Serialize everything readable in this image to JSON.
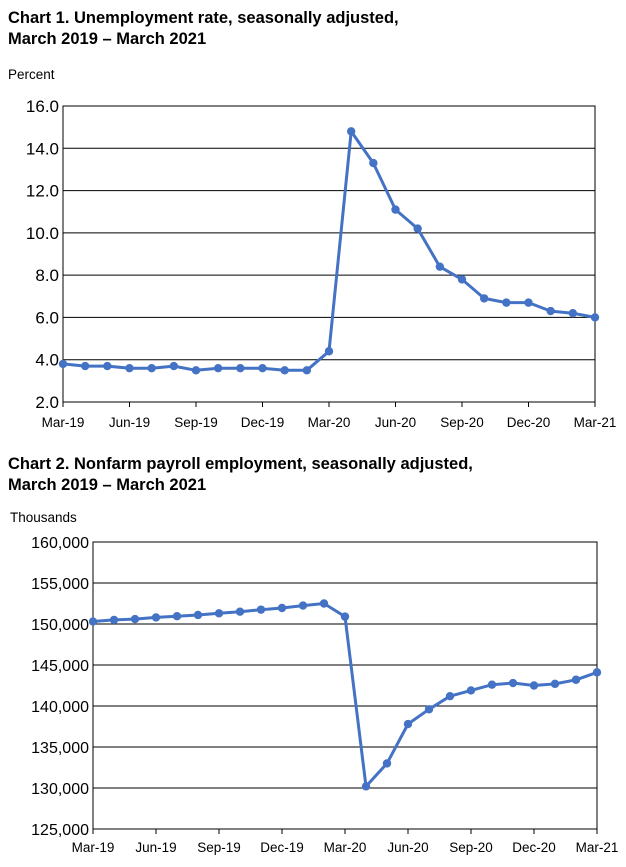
{
  "colors": {
    "line": "#4472c4",
    "grid": "#000000",
    "background": "#ffffff"
  },
  "chart_data": [
    {
      "type": "line",
      "title_line1": "Chart 1. Unemployment rate, seasonally adjusted,",
      "title_line2": "March 2019 – March 2021",
      "ylabel": "Percent",
      "xlabel": "",
      "ylim": [
        2.0,
        16.0
      ],
      "y_ticks": [
        "2.0",
        "4.0",
        "6.0",
        "8.0",
        "10.0",
        "12.0",
        "14.0",
        "16.0"
      ],
      "x_tick_labels": [
        "Mar-19",
        "Jun-19",
        "Sep-19",
        "Dec-19",
        "Mar-20",
        "Jun-20",
        "Sep-20",
        "Dec-20",
        "Mar-21"
      ],
      "grid": true,
      "x": [
        "2019-03",
        "2019-04",
        "2019-05",
        "2019-06",
        "2019-07",
        "2019-08",
        "2019-09",
        "2019-10",
        "2019-11",
        "2019-12",
        "2020-01",
        "2020-02",
        "2020-03",
        "2020-04",
        "2020-05",
        "2020-06",
        "2020-07",
        "2020-08",
        "2020-09",
        "2020-10",
        "2020-11",
        "2020-12",
        "2021-01",
        "2021-02",
        "2021-03"
      ],
      "series": [
        {
          "values": [
            3.8,
            3.7,
            3.7,
            3.6,
            3.6,
            3.7,
            3.5,
            3.6,
            3.6,
            3.6,
            3.5,
            3.5,
            4.4,
            14.8,
            13.3,
            11.1,
            10.2,
            8.4,
            7.8,
            6.9,
            6.7,
            6.7,
            6.3,
            6.2,
            6.0
          ]
        }
      ]
    },
    {
      "type": "line",
      "title_line1": "Chart 2. Nonfarm payroll employment, seasonally adjusted,",
      "title_line2": "March 2019 – March 2021",
      "ylabel": "Thousands",
      "xlabel": "",
      "ylim": [
        125000,
        160000
      ],
      "y_ticks": [
        "125,000",
        "130,000",
        "135,000",
        "140,000",
        "145,000",
        "150,000",
        "155,000",
        "160,000"
      ],
      "x_tick_labels": [
        "Mar-19",
        "Jun-19",
        "Sep-19",
        "Dec-19",
        "Mar-20",
        "Jun-20",
        "Sep-20",
        "Dec-20",
        "Mar-21"
      ],
      "grid": true,
      "x": [
        "2019-03",
        "2019-04",
        "2019-05",
        "2019-06",
        "2019-07",
        "2019-08",
        "2019-09",
        "2019-10",
        "2019-11",
        "2019-12",
        "2020-01",
        "2020-02",
        "2020-03",
        "2020-04",
        "2020-05",
        "2020-06",
        "2020-07",
        "2020-08",
        "2020-09",
        "2020-10",
        "2020-11",
        "2020-12",
        "2021-01",
        "2021-02",
        "2021-03"
      ],
      "series": [
        {
          "values": [
            150300,
            150500,
            150600,
            150800,
            150950,
            151100,
            151300,
            151500,
            151750,
            151950,
            152250,
            152500,
            150900,
            130200,
            133000,
            137800,
            139600,
            141200,
            141900,
            142600,
            142800,
            142500,
            142700,
            143200,
            144100
          ]
        }
      ]
    }
  ]
}
